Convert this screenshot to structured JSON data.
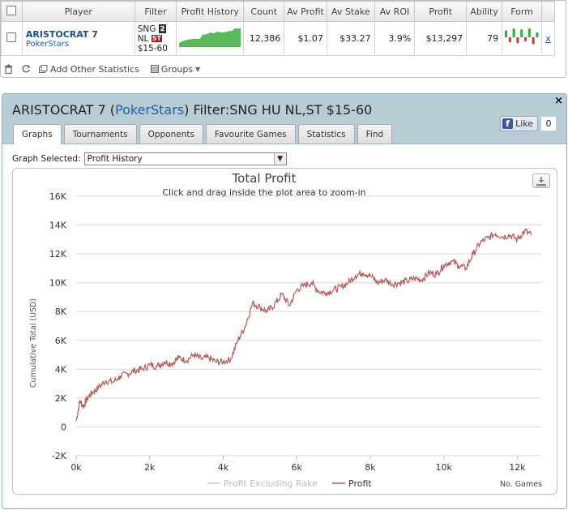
{
  "table": {
    "headers": [
      "Player",
      "Filter",
      "Profit History",
      "Count",
      "Av Profit",
      "Av Stake",
      "Av ROI",
      "Profit",
      "Ability",
      "Form"
    ],
    "row": {
      "player_name": "ARISTOCRAT 7",
      "player_site": "PokerStars",
      "filter_line1": "SNG",
      "filter_badge1": "2",
      "filter_line2": "NL",
      "filter_badge2": "ST",
      "filter_line3": "$15-60",
      "count": "12,386",
      "av_profit": "$1.07",
      "av_stake": "$33.27",
      "av_roi": "3.9%",
      "profit": "$13,297",
      "ability": "79",
      "remove": "x"
    },
    "form_bars": [
      0.7,
      -0.5,
      0.9,
      -0.6,
      0.8,
      -0.4,
      0.9,
      -0.7,
      0.5
    ]
  },
  "toolbar": {
    "add_stats": "Add Other Statistics",
    "groups": "Groups"
  },
  "panel": {
    "title_prefix": "ARISTOCRAT 7 (",
    "title_link": "PokerStars",
    "title_suffix": ") Filter:SNG HU NL,ST $15-60",
    "close": "×",
    "tabs": [
      "Graphs",
      "Tournaments",
      "Opponents",
      "Favourite Games",
      "Statistics",
      "Find"
    ],
    "active_tab": 0,
    "fb_like": "Like",
    "fb_count": "0",
    "graph_selected_label": "Graph Selected:",
    "graph_selected_value": "Profit History"
  },
  "colors": {
    "profit_line": "#b05a5a",
    "excl_rake_line": "#cccccc",
    "sparkline_fill": "#5cb85c",
    "form_up": "#3aa83a",
    "form_down": "#b84040"
  },
  "chart_data": {
    "type": "line",
    "title": "Total Profit",
    "subtitle": "Click and drag inside the plot area to zoom-in",
    "ylabel": "Cumulative Total (USD)",
    "xlabel": "No. Games",
    "xlim": [
      0,
      12386
    ],
    "ylim": [
      -2000,
      16000
    ],
    "y_ticks": [
      "16K",
      "14K",
      "12K",
      "10K",
      "8K",
      "6K",
      "4K",
      "2K",
      "0",
      "-2K"
    ],
    "y_tick_values": [
      16000,
      14000,
      12000,
      10000,
      8000,
      6000,
      4000,
      2000,
      0,
      -2000
    ],
    "x_ticks": [
      "0k",
      "2k",
      "4k",
      "6k",
      "8k",
      "10k",
      "12k"
    ],
    "x_tick_values": [
      0,
      2000,
      4000,
      6000,
      8000,
      10000,
      12000
    ],
    "legend": [
      "Profit Excluding Rake",
      "Profit"
    ],
    "series": [
      {
        "name": "Profit",
        "x": [
          0,
          100,
          200,
          300,
          450,
          600,
          800,
          1000,
          1200,
          1400,
          1600,
          1800,
          2000,
          2200,
          2400,
          2600,
          2800,
          3000,
          3200,
          3400,
          3600,
          3800,
          4000,
          4200,
          4400,
          4600,
          4800,
          5000,
          5200,
          5400,
          5600,
          5800,
          6000,
          6200,
          6400,
          6600,
          6800,
          7000,
          7200,
          7400,
          7600,
          7800,
          8000,
          8200,
          8400,
          8600,
          8800,
          9000,
          9200,
          9400,
          9600,
          9800,
          10000,
          10200,
          10400,
          10600,
          10800,
          11000,
          11200,
          11400,
          11600,
          11800,
          12000,
          12200,
          12386
        ],
        "y": [
          400,
          1800,
          1400,
          2000,
          2400,
          2700,
          3200,
          3100,
          3500,
          3700,
          3900,
          4000,
          4300,
          4200,
          4500,
          4400,
          4800,
          4600,
          5000,
          4700,
          4800,
          4500,
          4500,
          4700,
          6000,
          7000,
          8600,
          8300,
          8000,
          8500,
          9200,
          8400,
          9500,
          9800,
          10000,
          9400,
          9300,
          9500,
          9700,
          10000,
          10500,
          10700,
          10500,
          10000,
          10200,
          9900,
          10000,
          10100,
          10300,
          10200,
          10700,
          10600,
          11200,
          11500,
          11200,
          11000,
          12000,
          12800,
          13100,
          13400,
          13200,
          13300,
          13000,
          13600,
          13300
        ]
      }
    ]
  }
}
